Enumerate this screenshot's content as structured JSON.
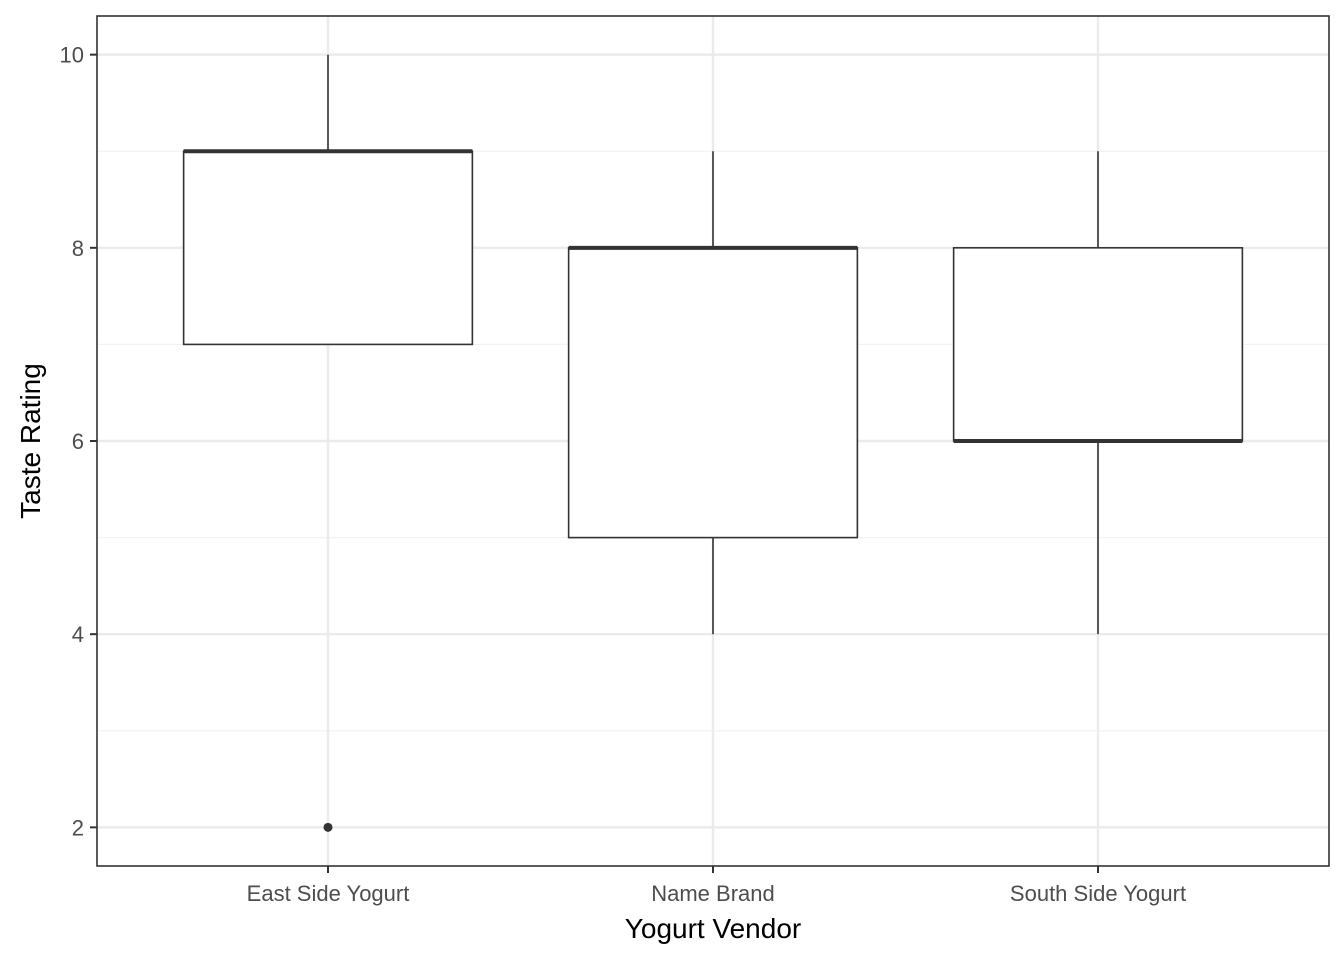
{
  "chart_data": {
    "type": "box",
    "title": "",
    "xlabel": "Yogurt Vendor",
    "ylabel": "Taste Rating",
    "ylim": [
      1.6,
      10.4
    ],
    "yticks": [
      2,
      4,
      6,
      8,
      10
    ],
    "yticks_minor": [
      3,
      5,
      7,
      9
    ],
    "grid": true,
    "legend": "none",
    "categories": [
      "East Side Yogurt",
      "Name Brand",
      "South Side Yogurt"
    ],
    "boxes": [
      {
        "category": "East Side Yogurt",
        "whisker_low": 7,
        "q1": 7,
        "median": 9,
        "q3": 9,
        "whisker_high": 10,
        "outliers": [
          2
        ]
      },
      {
        "category": "Name Brand",
        "whisker_low": 4,
        "q1": 5,
        "median": 8,
        "q3": 8,
        "whisker_high": 9,
        "outliers": []
      },
      {
        "category": "South Side Yogurt",
        "whisker_low": 4,
        "q1": 6,
        "median": 6,
        "q3": 8,
        "whisker_high": 9,
        "outliers": []
      }
    ],
    "colors": {
      "box_fill": "#ffffff",
      "box_line": "#333333",
      "grid_major": "#ebebeb",
      "grid_minor": "#f2f2f2",
      "panel_border": "#333333",
      "tick_text": "#4d4d4d",
      "axis_title": "#000000"
    }
  }
}
